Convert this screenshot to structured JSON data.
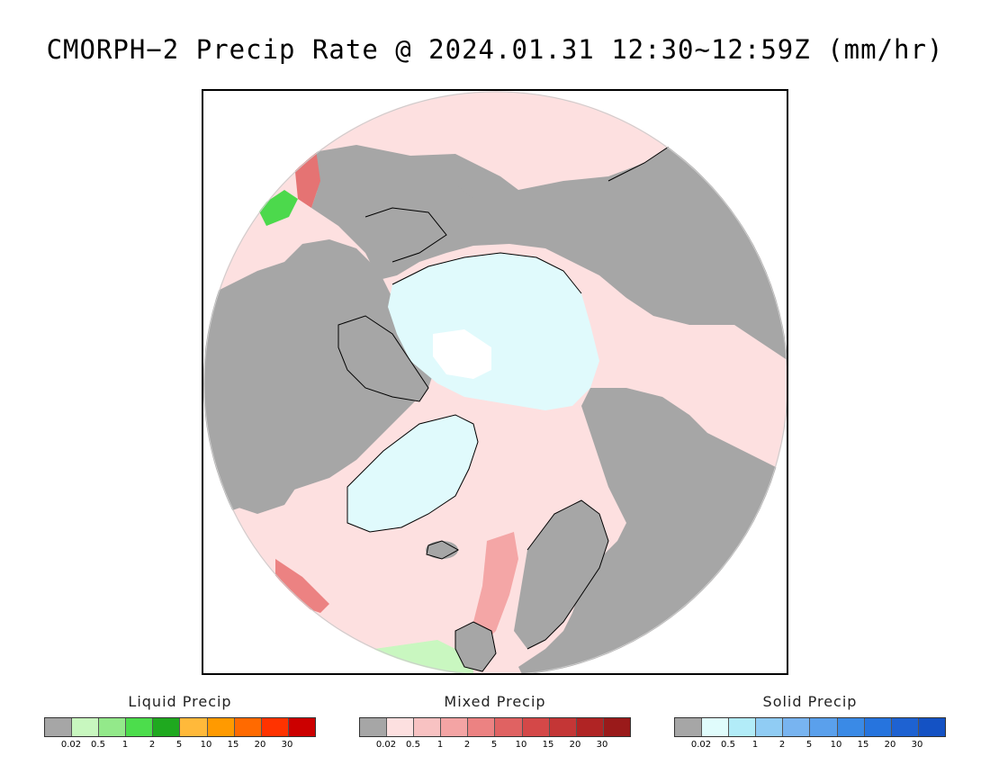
{
  "title": "CMORPH−2 Precip Rate @ 2024.01.31 12:30~12:59Z (mm/hr)",
  "map": {
    "projection": "north-polar-stereographic",
    "colors": {
      "no_precip": "#a6a6a6",
      "mixed_light": "#fde0e0",
      "mixed_medium": "#f4a6a6",
      "mixed_heavy": "#e57373",
      "solid_light": "#e0fafc",
      "liquid_light": "#c9f7c0",
      "liquid_medium": "#4cd94c",
      "coastline": "#000000",
      "background": "#ffffff"
    }
  },
  "legends": [
    {
      "title": "Liquid Precip",
      "colors": [
        "#a6a6a6",
        "#c8f7bf",
        "#93e98a",
        "#4cdd4c",
        "#1fa91f",
        "#ffb93a",
        "#ff9a00",
        "#ff6a00",
        "#ff3300",
        "#cc0000"
      ],
      "ticks": [
        "0.02",
        "0.5",
        "1",
        "2",
        "5",
        "10",
        "15",
        "20",
        "30"
      ]
    },
    {
      "title": "Mixed Precip",
      "colors": [
        "#a6a6a6",
        "#fde0e0",
        "#f8c2c2",
        "#f4a4a4",
        "#ec8282",
        "#e06262",
        "#d44848",
        "#c43636",
        "#b02424",
        "#9a1a1a"
      ],
      "ticks": [
        "0.02",
        "0.5",
        "1",
        "2",
        "5",
        "10",
        "15",
        "20",
        "30"
      ]
    },
    {
      "title": "Solid Precip",
      "colors": [
        "#a6a6a6",
        "#e0fcfc",
        "#b2ecf8",
        "#90ccf4",
        "#78b4f0",
        "#5aa0ec",
        "#3a8ae6",
        "#2674de",
        "#1e62d2",
        "#1452c4"
      ],
      "ticks": [
        "0.02",
        "0.5",
        "1",
        "2",
        "5",
        "10",
        "15",
        "20",
        "30"
      ]
    }
  ]
}
